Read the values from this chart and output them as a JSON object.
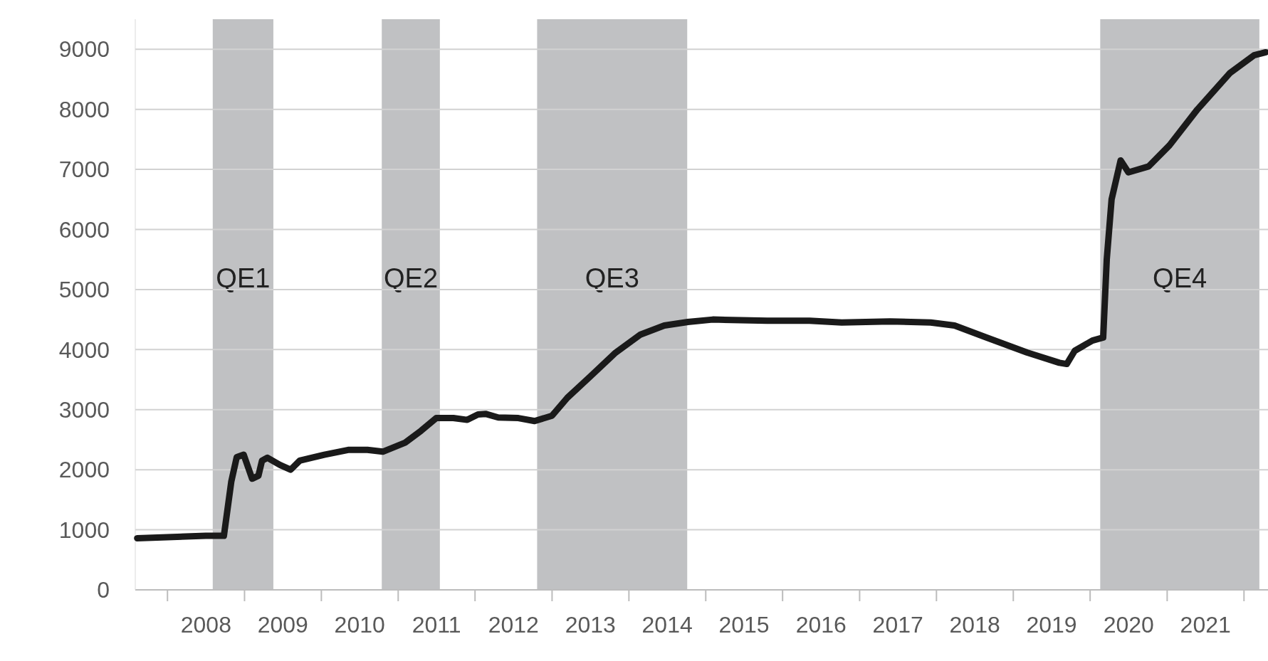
{
  "chart_data": {
    "type": "line",
    "xlim": [
      "2007-08-01",
      "2022-04-25"
    ],
    "ylim": [
      0,
      9500
    ],
    "yticks": [
      0,
      1000,
      2000,
      3000,
      4000,
      5000,
      6000,
      7000,
      8000,
      9000
    ],
    "xticks": [
      {
        "value": "2008-01-01",
        "label": null
      },
      {
        "value": "2009-01-01",
        "label": null
      },
      {
        "value": "2010-01-01",
        "label": null
      },
      {
        "value": "2011-01-01",
        "label": null
      },
      {
        "value": "2012-01-01",
        "label": null
      },
      {
        "value": "2013-01-01",
        "label": null
      },
      {
        "value": "2014-01-01",
        "label": null
      },
      {
        "value": "2015-01-01",
        "label": null
      },
      {
        "value": "2016-01-01",
        "label": null
      },
      {
        "value": "2017-01-01",
        "label": null
      },
      {
        "value": "2018-01-01",
        "label": null
      },
      {
        "value": "2019-01-01",
        "label": null
      },
      {
        "value": "2020-01-01",
        "label": null
      },
      {
        "value": "2021-01-01",
        "label": null
      },
      {
        "value": "2022-01-01",
        "label": null
      },
      {
        "value": "2008-07-02",
        "label": "2008"
      },
      {
        "value": "2009-07-02",
        "label": "2009"
      },
      {
        "value": "2010-07-02",
        "label": "2010"
      },
      {
        "value": "2011-07-02",
        "label": "2011"
      },
      {
        "value": "2012-07-02",
        "label": "2012"
      },
      {
        "value": "2013-07-02",
        "label": "2013"
      },
      {
        "value": "2014-07-02",
        "label": "2014"
      },
      {
        "value": "2015-07-02",
        "label": "2015"
      },
      {
        "value": "2016-07-02",
        "label": "2016"
      },
      {
        "value": "2017-07-02",
        "label": "2017"
      },
      {
        "value": "2018-07-02",
        "label": "2018"
      },
      {
        "value": "2019-07-02",
        "label": "2019"
      },
      {
        "value": "2020-07-02",
        "label": "2020"
      },
      {
        "value": "2021-07-02",
        "label": "2021"
      }
    ],
    "grid": "y",
    "line_style": "solid",
    "marker": "none",
    "bands": [
      {
        "axis": "x",
        "from": "2008-08-03",
        "to": "2009-05-18",
        "label": "QE1",
        "color": "#c0c1c3"
      },
      {
        "axis": "x",
        "from": "2010-10-15",
        "to": "2011-07-18",
        "label": "QE2",
        "color": "#c0c1c3"
      },
      {
        "axis": "x",
        "from": "2012-10-22",
        "to": "2014-10-05",
        "label": "QE3",
        "color": "#c0c1c3"
      },
      {
        "axis": "x",
        "from": "2020-02-18",
        "to": "2022-03-15",
        "label": "QE4",
        "color": "#c0c1c3"
      }
    ],
    "series": [
      {
        "color": "#1a1a1a",
        "x": [
          "2007-08-10",
          "2008-07-01",
          "2008-09-25",
          "2008-10-30",
          "2008-11-25",
          "2008-12-28",
          "2009-02-06",
          "2009-03-08",
          "2009-03-25",
          "2009-04-20",
          "2009-06-18",
          "2009-08-08",
          "2009-09-20",
          "2010-01-15",
          "2010-05-08",
          "2010-08-08",
          "2010-10-20",
          "2011-02-03",
          "2011-04-20",
          "2011-07-01",
          "2011-09-20",
          "2011-11-25",
          "2012-01-15",
          "2012-02-20",
          "2012-04-20",
          "2012-07-25",
          "2012-10-10",
          "2013-01-01",
          "2013-03-15",
          "2013-07-01",
          "2013-10-30",
          "2014-02-25",
          "2014-06-18",
          "2014-10-08",
          "2015-02-03",
          "2015-10-20",
          "2016-05-08",
          "2016-10-08",
          "2017-05-25",
          "2017-12-05",
          "2018-03-28",
          "2018-08-28",
          "2019-03-08",
          "2019-08-08",
          "2019-09-12",
          "2019-10-20",
          "2020-01-12",
          "2020-03-03",
          "2020-03-20",
          "2020-04-12",
          "2020-05-25",
          "2020-07-01",
          "2020-10-05",
          "2021-01-12",
          "2021-05-25",
          "2021-10-25",
          "2022-02-18",
          "2022-04-15"
        ],
        "values": [
          860,
          900,
          900,
          1800,
          2210,
          2250,
          1850,
          1900,
          2150,
          2200,
          2080,
          2000,
          2150,
          2250,
          2330,
          2330,
          2300,
          2450,
          2650,
          2860,
          2860,
          2830,
          2920,
          2930,
          2870,
          2860,
          2810,
          2900,
          3200,
          3550,
          3950,
          4250,
          4400,
          4460,
          4500,
          4480,
          4480,
          4450,
          4470,
          4450,
          4400,
          4200,
          3950,
          3780,
          3760,
          3980,
          4150,
          4200,
          5500,
          6500,
          7150,
          6950,
          7050,
          7400,
          8000,
          8600,
          8900,
          8950
        ]
      }
    ]
  }
}
